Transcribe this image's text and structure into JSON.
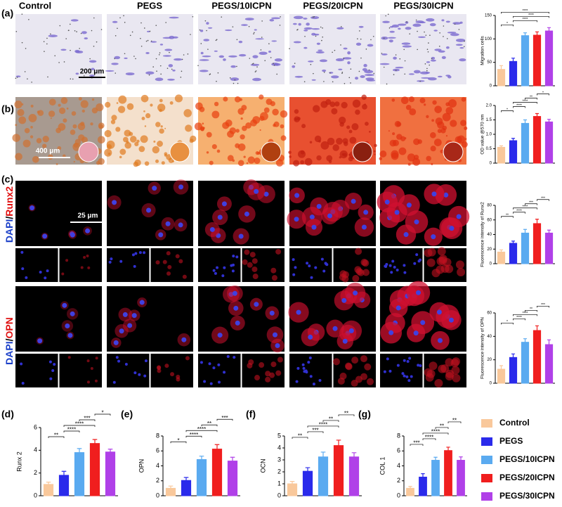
{
  "figure": {
    "column_headers": [
      "Control",
      "PEGS",
      "PEGS/10ICPN",
      "PEGS/20ICPN",
      "PEGS/30ICPN"
    ],
    "panel_labels": [
      "(a)",
      "(b)",
      "(c)",
      "(d)",
      "(e)",
      "(f)",
      "(g)"
    ],
    "scale_bars": [
      "200 μm",
      "400 μm",
      "25 μm"
    ],
    "stain_labels": [
      {
        "a": "DAPI",
        "sep": "/",
        "b": "Runx2"
      },
      {
        "a": "DAPI",
        "sep": "/",
        "b": "OPN"
      }
    ]
  },
  "legend": {
    "names": [
      "Control",
      "PEGS",
      "PEGS/10ICPN",
      "PEGS/20ICPN",
      "PEGS/30ICPN"
    ],
    "colors": [
      "#f9c89b",
      "#2a2aeb",
      "#5aaaf0",
      "#f01e1e",
      "#b040e8"
    ]
  },
  "chart_data": [
    {
      "type": "bar",
      "ylabel": "Migration cells",
      "categories": [
        null,
        null,
        null,
        null,
        null
      ],
      "values": [
        35,
        52,
        107,
        108,
        117
      ],
      "errors": [
        8,
        7,
        6,
        7,
        7
      ],
      "colors": [
        "#f9c89b",
        "#2a2aeb",
        "#5aaaf0",
        "#f01e1e",
        "#b040e8"
      ],
      "ylim": [
        0,
        150
      ],
      "yticks": [
        0,
        50,
        100,
        150
      ],
      "significance": [
        {
          "label": "*",
          "groups": [
            0,
            1
          ]
        },
        {
          "label": "****",
          "groups": [
            1,
            3
          ]
        },
        {
          "label": "****",
          "groups": [
            1,
            4
          ]
        },
        {
          "label": "****",
          "groups": [
            0,
            4
          ]
        }
      ]
    },
    {
      "type": "bar",
      "ylabel": "OD value @570 nm",
      "categories": [
        null,
        null,
        null,
        null,
        null
      ],
      "values": [
        0.55,
        0.78,
        1.38,
        1.62,
        1.43
      ],
      "errors": [
        0.05,
        0.08,
        0.12,
        0.1,
        0.09
      ],
      "colors": [
        "#f9c89b",
        "#2a2aeb",
        "#5aaaf0",
        "#f01e1e",
        "#b040e8"
      ],
      "ylim": [
        0,
        2
      ],
      "yticks": [
        0,
        0.5,
        {
          "value": 1,
          "label": "1.0"
        },
        1.5,
        {
          "value": 2,
          "label": "2.0"
        }
      ],
      "significance": [
        {
          "label": "*",
          "groups": [
            0,
            1
          ]
        },
        {
          "label": "****",
          "groups": [
            1,
            2
          ]
        },
        {
          "label": "****",
          "groups": [
            1,
            3
          ]
        },
        {
          "label": "**",
          "groups": [
            2,
            3
          ]
        },
        {
          "label": "*",
          "groups": [
            3,
            4
          ]
        }
      ]
    },
    {
      "type": "bar",
      "ylabel": "Fluorescence intensity of Runx2",
      "categories": [
        null,
        null,
        null,
        null,
        null
      ],
      "values": [
        16,
        28,
        42,
        55,
        42
      ],
      "errors": [
        3,
        3,
        5,
        6,
        4
      ],
      "colors": [
        "#f9c89b",
        "#2a2aeb",
        "#5aaaf0",
        "#f01e1e",
        "#b040e8"
      ],
      "ylim": [
        0,
        80
      ],
      "yticks": [
        0,
        20,
        40,
        60,
        80
      ],
      "significance": [
        {
          "label": "**",
          "groups": [
            0,
            1
          ]
        },
        {
          "label": "****",
          "groups": [
            1,
            2
          ]
        },
        {
          "label": "****",
          "groups": [
            1,
            3
          ]
        },
        {
          "label": "***",
          "groups": [
            2,
            3
          ]
        },
        {
          "label": "***",
          "groups": [
            3,
            4
          ]
        }
      ]
    },
    {
      "type": "bar",
      "ylabel": "Fluorescence intensity of OPN",
      "categories": [
        null,
        null,
        null,
        null,
        null
      ],
      "values": [
        12,
        22,
        35,
        45,
        33
      ],
      "errors": [
        3,
        3,
        3,
        4,
        4
      ],
      "colors": [
        "#f9c89b",
        "#2a2aeb",
        "#5aaaf0",
        "#f01e1e",
        "#b040e8"
      ],
      "ylim": [
        0,
        60
      ],
      "yticks": [
        0,
        20,
        40,
        60
      ],
      "significance": [
        {
          "label": "*",
          "groups": [
            0,
            1
          ]
        },
        {
          "label": "****",
          "groups": [
            1,
            2
          ]
        },
        {
          "label": "****",
          "groups": [
            1,
            3
          ]
        },
        {
          "label": "**",
          "groups": [
            2,
            3
          ]
        },
        {
          "label": "***",
          "groups": [
            3,
            4
          ]
        }
      ]
    },
    {
      "type": "bar",
      "ylabel": "Runx 2",
      "categories": [
        null,
        null,
        null,
        null,
        null
      ],
      "values": [
        1.0,
        1.8,
        3.8,
        4.6,
        3.85
      ],
      "errors": [
        0.2,
        0.35,
        0.35,
        0.35,
        0.25
      ],
      "colors": [
        "#f9c89b",
        "#2a2aeb",
        "#5aaaf0",
        "#f01e1e",
        "#b040e8"
      ],
      "ylim": [
        0,
        6
      ],
      "yticks": [
        0,
        2,
        4,
        6
      ],
      "significance": [
        {
          "label": "**",
          "groups": [
            0,
            1
          ]
        },
        {
          "label": "****",
          "groups": [
            1,
            2
          ]
        },
        {
          "label": "****",
          "groups": [
            1,
            3
          ]
        },
        {
          "label": "***",
          "groups": [
            2,
            3
          ]
        },
        {
          "label": "*",
          "groups": [
            3,
            4
          ]
        }
      ]
    },
    {
      "type": "bar",
      "ylabel": "OPN",
      "categories": [
        null,
        null,
        null,
        null,
        null
      ],
      "values": [
        1.0,
        2.05,
        4.85,
        6.25,
        4.65
      ],
      "errors": [
        0.3,
        0.4,
        0.45,
        0.6,
        0.5
      ],
      "colors": [
        "#f9c89b",
        "#2a2aeb",
        "#5aaaf0",
        "#f01e1e",
        "#b040e8"
      ],
      "ylim": [
        0,
        8
      ],
      "yticks": [
        0,
        2,
        4,
        6,
        8
      ],
      "significance": [
        {
          "label": "*",
          "groups": [
            0,
            1
          ]
        },
        {
          "label": "****",
          "groups": [
            1,
            2
          ]
        },
        {
          "label": "****",
          "groups": [
            1,
            3
          ]
        },
        {
          "label": "**",
          "groups": [
            2,
            3
          ]
        },
        {
          "label": "***",
          "groups": [
            3,
            4
          ]
        }
      ]
    },
    {
      "type": "bar",
      "ylabel": "OCN",
      "categories": [
        null,
        null,
        null,
        null,
        null
      ],
      "values": [
        1.0,
        2.05,
        3.25,
        4.2,
        3.25
      ],
      "errors": [
        0.2,
        0.3,
        0.4,
        0.45,
        0.35
      ],
      "colors": [
        "#f9c89b",
        "#2a2aeb",
        "#5aaaf0",
        "#f01e1e",
        "#b040e8"
      ],
      "ylim": [
        0,
        5
      ],
      "yticks": [
        0,
        1,
        2,
        3,
        4,
        5
      ],
      "significance": [
        {
          "label": "**",
          "groups": [
            0,
            1
          ]
        },
        {
          "label": "***",
          "groups": [
            1,
            2
          ]
        },
        {
          "label": "****",
          "groups": [
            1,
            3
          ]
        },
        {
          "label": "**",
          "groups": [
            2,
            3
          ]
        },
        {
          "label": "**",
          "groups": [
            3,
            4
          ]
        }
      ]
    },
    {
      "type": "bar",
      "ylabel": "COL 1",
      "categories": [
        null,
        null,
        null,
        null,
        null
      ],
      "values": [
        1.0,
        2.5,
        4.75,
        6.05,
        4.75
      ],
      "errors": [
        0.25,
        0.45,
        0.4,
        0.45,
        0.45
      ],
      "colors": [
        "#f9c89b",
        "#2a2aeb",
        "#5aaaf0",
        "#f01e1e",
        "#b040e8"
      ],
      "ylim": [
        0,
        8
      ],
      "yticks": [
        0,
        2,
        4,
        6,
        8
      ],
      "significance": [
        {
          "label": "***",
          "groups": [
            0,
            1
          ]
        },
        {
          "label": "****",
          "groups": [
            1,
            2
          ]
        },
        {
          "label": "****",
          "groups": [
            1,
            3
          ]
        },
        {
          "label": "**",
          "groups": [
            2,
            3
          ]
        },
        {
          "label": "**",
          "groups": [
            3,
            4
          ]
        }
      ]
    }
  ]
}
